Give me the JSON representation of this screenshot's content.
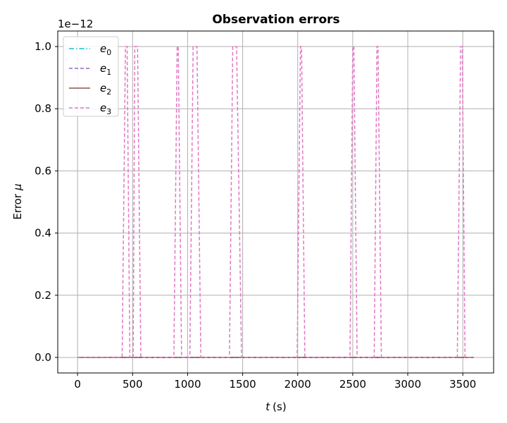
{
  "chart_data": {
    "type": "line",
    "title": "Observation errors",
    "xlabel": "t",
    "xlabel_unit": "(s)",
    "ylabel": "Error",
    "ylabel_symbol": "μ",
    "offset_text": "1e−12",
    "xlim": [
      -180,
      3780
    ],
    "ylim": [
      -0.05,
      1.05
    ],
    "x_ticks": [
      0,
      500,
      1000,
      1500,
      2000,
      2500,
      3000,
      3500
    ],
    "y_ticks": [
      0.0,
      0.2,
      0.4,
      0.6,
      0.8,
      1.0
    ],
    "x_tick_labels": [
      "0",
      "500",
      "1000",
      "1500",
      "2000",
      "2500",
      "3000",
      "3500"
    ],
    "y_tick_labels": [
      "0.0",
      "0.2",
      "0.4",
      "0.6",
      "0.8",
      "1.0"
    ],
    "grid": true,
    "legend_position": "top-left",
    "series": [
      {
        "name": "e",
        "subscript": "0",
        "color": "#17becf",
        "dash": "dashdot",
        "points": [
          [
            0,
            0
          ],
          [
            3600,
            0
          ]
        ]
      },
      {
        "name": "e",
        "subscript": "1",
        "color": "#9467bd",
        "dash": "dashed",
        "points": [
          [
            0,
            0
          ],
          [
            3600,
            0
          ]
        ]
      },
      {
        "name": "e",
        "subscript": "2",
        "color": "#8c564b",
        "dash": "solid",
        "points": [
          [
            0,
            0
          ],
          [
            3600,
            0
          ]
        ]
      },
      {
        "name": "e",
        "subscript": "3",
        "color": "#e377c2",
        "dash": "dashed",
        "points": [
          [
            0,
            0
          ],
          [
            405,
            0
          ],
          [
            435,
            1
          ],
          [
            450,
            1
          ],
          [
            475,
            0
          ],
          [
            505,
            0
          ],
          [
            520,
            1
          ],
          [
            545,
            1
          ],
          [
            575,
            0
          ],
          [
            875,
            0
          ],
          [
            905,
            1
          ],
          [
            915,
            1
          ],
          [
            945,
            0
          ],
          [
            1020,
            0
          ],
          [
            1050,
            1
          ],
          [
            1060,
            1
          ],
          [
            1075,
            1
          ],
          [
            1085,
            1
          ],
          [
            1120,
            0
          ],
          [
            1380,
            0
          ],
          [
            1410,
            1
          ],
          [
            1445,
            1
          ],
          [
            1490,
            0
          ],
          [
            1995,
            0
          ],
          [
            2025,
            1
          ],
          [
            2035,
            1
          ],
          [
            2065,
            0
          ],
          [
            2475,
            0
          ],
          [
            2500,
            1
          ],
          [
            2510,
            1
          ],
          [
            2540,
            0
          ],
          [
            2695,
            0
          ],
          [
            2720,
            1
          ],
          [
            2730,
            1
          ],
          [
            2760,
            0
          ],
          [
            3450,
            0
          ],
          [
            3480,
            1
          ],
          [
            3495,
            1
          ],
          [
            3520,
            0
          ],
          [
            3600,
            0
          ]
        ]
      }
    ]
  }
}
